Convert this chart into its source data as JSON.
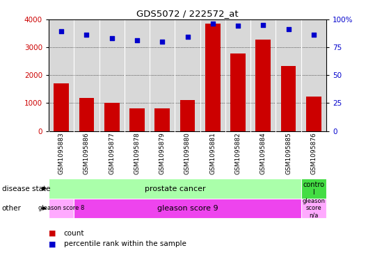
{
  "title": "GDS5072 / 222572_at",
  "samples": [
    "GSM1095883",
    "GSM1095886",
    "GSM1095877",
    "GSM1095878",
    "GSM1095879",
    "GSM1095880",
    "GSM1095881",
    "GSM1095882",
    "GSM1095884",
    "GSM1095885",
    "GSM1095876"
  ],
  "counts": [
    1700,
    1180,
    1000,
    800,
    800,
    1120,
    3850,
    2760,
    3280,
    2320,
    1220
  ],
  "percentiles": [
    89,
    86,
    83,
    81,
    80,
    84,
    96,
    94,
    95,
    91,
    86
  ],
  "ylim_left": [
    0,
    4000
  ],
  "ylim_right": [
    0,
    100
  ],
  "yticks_left": [
    0,
    1000,
    2000,
    3000,
    4000
  ],
  "yticks_right": [
    0,
    25,
    50,
    75,
    100
  ],
  "ytick_labels_right": [
    "0",
    "25",
    "50",
    "75",
    "100%"
  ],
  "bar_color": "#cc0000",
  "dot_color": "#0000cc",
  "left_tick_color": "#cc0000",
  "right_tick_color": "#0000cc",
  "grid_color": "#000000",
  "plot_bg_color": "#d8d8d8",
  "label_bg_color": "#d8d8d8",
  "background_color": "#ffffff",
  "ds_cancer_color": "#aaffaa",
  "ds_control_color": "#44dd44",
  "oth_gs8_color": "#ffaaff",
  "oth_gs9_color": "#ee44ee",
  "oth_gsna_color": "#ffaaff",
  "legend_count_label": "count",
  "legend_pct_label": "percentile rank within the sample"
}
